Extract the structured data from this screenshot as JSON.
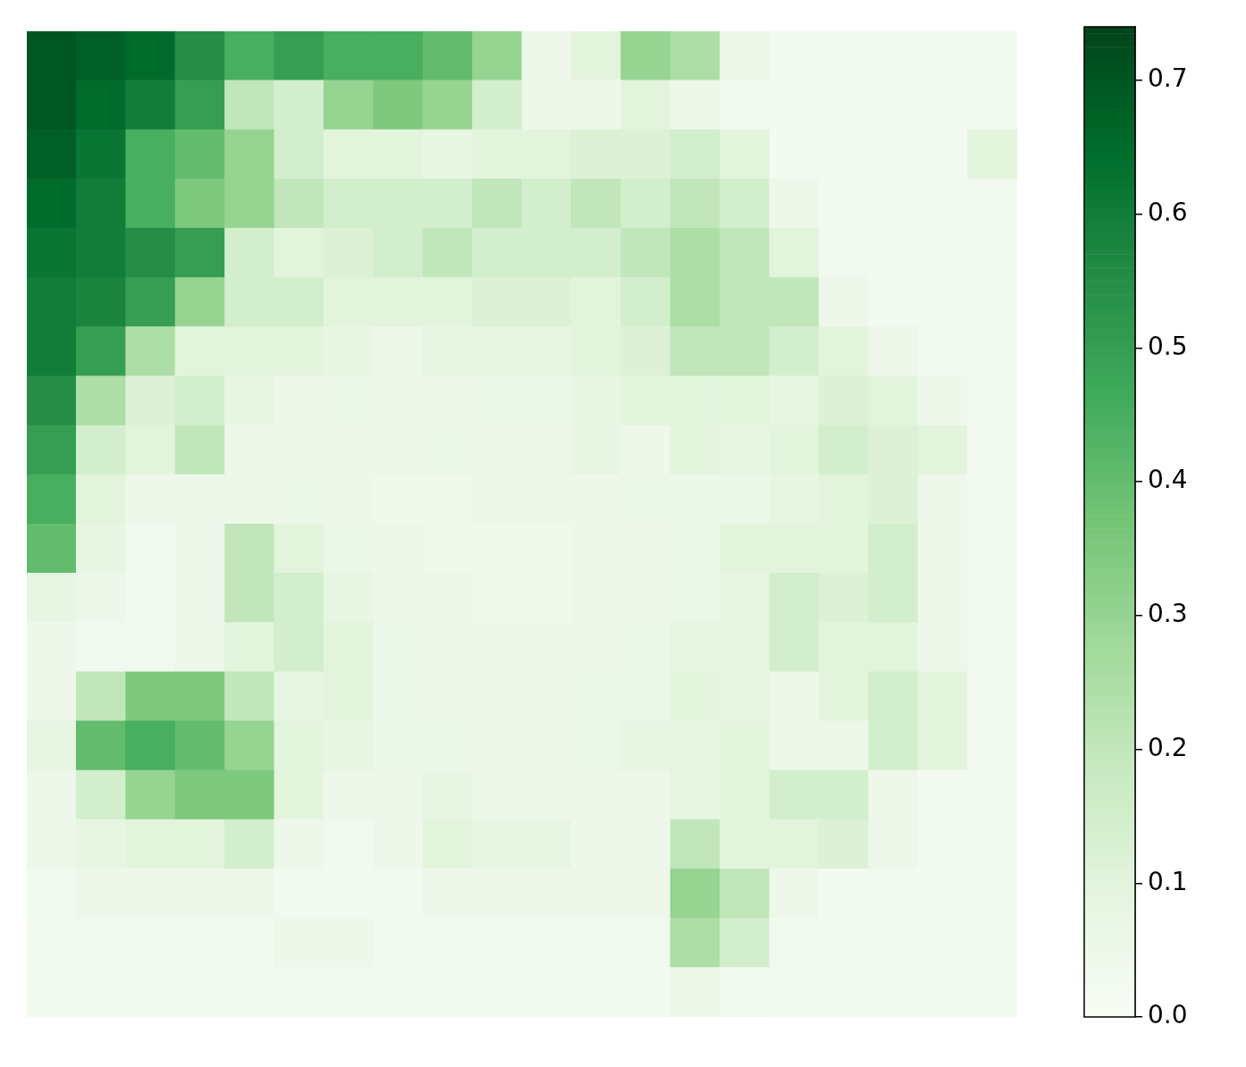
{
  "chart_data": {
    "type": "heatmap",
    "color": "Greens",
    "tick_labels": false,
    "cells": [
      [
        0.7,
        0.68,
        0.65,
        0.55,
        0.45,
        0.5,
        0.45,
        0.45,
        0.4,
        0.3,
        0.05,
        0.1,
        0.3,
        0.25,
        0.05,
        0.02,
        0.02,
        0.02,
        0.02,
        0.02
      ],
      [
        0.7,
        0.65,
        0.6,
        0.5,
        0.2,
        0.15,
        0.3,
        0.35,
        0.3,
        0.15,
        0.05,
        0.05,
        0.1,
        0.05,
        0.02,
        0.02,
        0.02,
        0.02,
        0.02,
        0.02
      ],
      [
        0.68,
        0.62,
        0.45,
        0.4,
        0.3,
        0.15,
        0.1,
        0.1,
        0.08,
        0.1,
        0.1,
        0.12,
        0.12,
        0.15,
        0.1,
        0.02,
        0.02,
        0.02,
        0.02,
        0.1
      ],
      [
        0.65,
        0.6,
        0.45,
        0.35,
        0.3,
        0.2,
        0.15,
        0.15,
        0.15,
        0.2,
        0.15,
        0.2,
        0.15,
        0.2,
        0.15,
        0.05,
        0.02,
        0.02,
        0.02,
        0.02
      ],
      [
        0.62,
        0.6,
        0.55,
        0.5,
        0.15,
        0.1,
        0.12,
        0.15,
        0.2,
        0.15,
        0.15,
        0.15,
        0.2,
        0.25,
        0.2,
        0.1,
        0.03,
        0.02,
        0.02,
        0.02
      ],
      [
        0.6,
        0.58,
        0.5,
        0.3,
        0.15,
        0.15,
        0.1,
        0.1,
        0.1,
        0.12,
        0.12,
        0.1,
        0.15,
        0.25,
        0.2,
        0.2,
        0.05,
        0.02,
        0.02,
        0.02
      ],
      [
        0.6,
        0.5,
        0.25,
        0.1,
        0.1,
        0.1,
        0.08,
        0.05,
        0.08,
        0.08,
        0.08,
        0.1,
        0.12,
        0.2,
        0.2,
        0.15,
        0.1,
        0.05,
        0.02,
        0.02
      ],
      [
        0.55,
        0.25,
        0.12,
        0.15,
        0.08,
        0.05,
        0.06,
        0.05,
        0.05,
        0.06,
        0.06,
        0.08,
        0.1,
        0.1,
        0.1,
        0.08,
        0.12,
        0.1,
        0.05,
        0.02
      ],
      [
        0.5,
        0.15,
        0.1,
        0.2,
        0.05,
        0.05,
        0.05,
        0.05,
        0.06,
        0.05,
        0.05,
        0.08,
        0.05,
        0.1,
        0.08,
        0.1,
        0.15,
        0.12,
        0.1,
        0.02
      ],
      [
        0.45,
        0.1,
        0.05,
        0.05,
        0.05,
        0.06,
        0.05,
        0.04,
        0.04,
        0.05,
        0.05,
        0.05,
        0.06,
        0.06,
        0.06,
        0.08,
        0.1,
        0.12,
        0.05,
        0.02
      ],
      [
        0.4,
        0.08,
        0.03,
        0.05,
        0.2,
        0.1,
        0.06,
        0.05,
        0.04,
        0.04,
        0.04,
        0.05,
        0.05,
        0.06,
        0.1,
        0.1,
        0.1,
        0.15,
        0.05,
        0.02
      ],
      [
        0.08,
        0.05,
        0.03,
        0.05,
        0.2,
        0.15,
        0.08,
        0.05,
        0.05,
        0.04,
        0.04,
        0.05,
        0.05,
        0.06,
        0.08,
        0.15,
        0.12,
        0.15,
        0.05,
        0.02
      ],
      [
        0.05,
        0.03,
        0.03,
        0.05,
        0.1,
        0.15,
        0.1,
        0.06,
        0.05,
        0.05,
        0.05,
        0.05,
        0.06,
        0.08,
        0.08,
        0.15,
        0.1,
        0.1,
        0.05,
        0.02
      ],
      [
        0.05,
        0.2,
        0.35,
        0.35,
        0.2,
        0.08,
        0.1,
        0.06,
        0.05,
        0.05,
        0.05,
        0.06,
        0.06,
        0.1,
        0.08,
        0.05,
        0.1,
        0.15,
        0.1,
        0.02
      ],
      [
        0.08,
        0.4,
        0.45,
        0.4,
        0.3,
        0.1,
        0.08,
        0.06,
        0.06,
        0.05,
        0.05,
        0.06,
        0.08,
        0.08,
        0.1,
        0.05,
        0.05,
        0.15,
        0.1,
        0.02
      ],
      [
        0.05,
        0.15,
        0.3,
        0.35,
        0.35,
        0.1,
        0.05,
        0.05,
        0.08,
        0.05,
        0.05,
        0.05,
        0.05,
        0.08,
        0.1,
        0.15,
        0.15,
        0.05,
        0.02,
        0.02
      ],
      [
        0.05,
        0.08,
        0.1,
        0.1,
        0.15,
        0.05,
        0.03,
        0.05,
        0.1,
        0.08,
        0.08,
        0.05,
        0.05,
        0.2,
        0.1,
        0.1,
        0.12,
        0.05,
        0.02,
        0.02
      ],
      [
        0.03,
        0.05,
        0.05,
        0.05,
        0.05,
        0.03,
        0.03,
        0.03,
        0.05,
        0.05,
        0.05,
        0.05,
        0.05,
        0.3,
        0.2,
        0.05,
        0.02,
        0.02,
        0.02,
        0.02
      ],
      [
        0.02,
        0.03,
        0.03,
        0.02,
        0.03,
        0.05,
        0.05,
        0.03,
        0.03,
        0.03,
        0.03,
        0.03,
        0.03,
        0.25,
        0.15,
        0.03,
        0.02,
        0.02,
        0.02,
        0.02
      ],
      [
        0.02,
        0.02,
        0.02,
        0.02,
        0.02,
        0.02,
        0.02,
        0.02,
        0.02,
        0.02,
        0.02,
        0.02,
        0.02,
        0.05,
        0.03,
        0.02,
        0.02,
        0.02,
        0.02,
        0.02
      ]
    ],
    "color_range": [
      0,
      0.74
    ],
    "color_ticks": [
      {
        "value": 0,
        "label": "0.0"
      },
      0.1,
      0.2,
      0.3,
      0.4,
      0.5,
      0.6,
      0.7
    ]
  }
}
